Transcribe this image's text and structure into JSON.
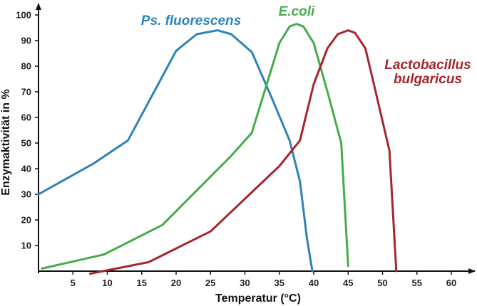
{
  "chart_data": {
    "type": "line",
    "xlabel": "Temperatur (°C)",
    "ylabel": "Enzymaktivität in %",
    "xlim": [
      0,
      63
    ],
    "ylim": [
      0,
      100
    ],
    "x_ticks": [
      5,
      10,
      15,
      20,
      25,
      30,
      35,
      40,
      45,
      50,
      55,
      60
    ],
    "y_ticks": [
      10,
      20,
      30,
      40,
      50,
      60,
      70,
      80,
      90,
      100
    ],
    "grid": false,
    "series": [
      {
        "name": "Ps. fluorescens",
        "color": "#2f82b8",
        "points": [
          [
            0,
            30
          ],
          [
            8,
            42
          ],
          [
            13,
            51
          ],
          [
            20,
            86
          ],
          [
            23,
            92.5
          ],
          [
            26,
            94
          ],
          [
            28,
            92.5
          ],
          [
            31,
            85.5
          ],
          [
            34,
            67
          ],
          [
            36.5,
            51
          ],
          [
            38,
            35
          ],
          [
            39,
            13
          ],
          [
            39.8,
            0
          ]
        ]
      },
      {
        "name": "E.coli",
        "color": "#43ad4a",
        "points": [
          [
            0.5,
            1
          ],
          [
            9.5,
            6.5
          ],
          [
            18,
            18
          ],
          [
            28,
            45
          ],
          [
            31,
            54
          ],
          [
            35,
            89
          ],
          [
            36.5,
            95.5
          ],
          [
            37.5,
            96.5
          ],
          [
            38.5,
            95.5
          ],
          [
            40,
            89
          ],
          [
            42,
            70
          ],
          [
            44,
            50
          ],
          [
            45,
            2
          ]
        ]
      },
      {
        "name": "Lactobacillus\nbulgaricus",
        "color": "#a3272c",
        "points": [
          [
            7.5,
            -1
          ],
          [
            16,
            3.5
          ],
          [
            25,
            15.5
          ],
          [
            35,
            41
          ],
          [
            38,
            51
          ],
          [
            40,
            73
          ],
          [
            42,
            87
          ],
          [
            43.5,
            92.5
          ],
          [
            45,
            94
          ],
          [
            46,
            93
          ],
          [
            47.5,
            87
          ],
          [
            49,
            70
          ],
          [
            51,
            47
          ],
          [
            52,
            0
          ]
        ]
      }
    ]
  }
}
